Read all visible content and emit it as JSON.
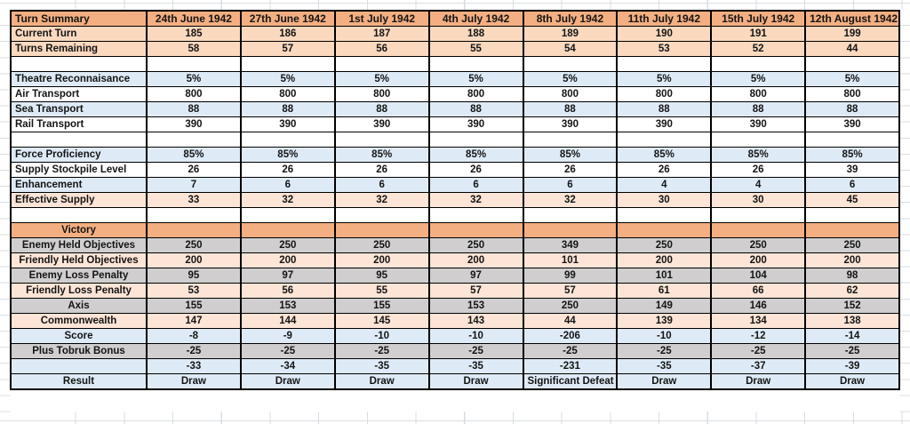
{
  "colors": {
    "orange": "#f3af81",
    "peach": "#fbd9bf",
    "peachLight": "#fce4d6",
    "blue": "#deebf7",
    "gray": "#d0cece",
    "white": "#ffffff",
    "border": "#000000",
    "gridline": "#d9dde1",
    "text": "#141414"
  },
  "grid": {
    "rows": [
      {
        "label": "Turn Summary",
        "labelAlign": "left",
        "bg": "orange",
        "header": true,
        "values": [
          "24th June 1942",
          "27th June 1942",
          "1st July 1942",
          "4th July 1942",
          "8th July 1942",
          "11th July 1942",
          "15th July 1942",
          "12th August 1942"
        ]
      },
      {
        "label": "Current Turn",
        "labelAlign": "left",
        "bg": "peach",
        "values": [
          "185",
          "186",
          "187",
          "188",
          "189",
          "190",
          "191",
          "199"
        ]
      },
      {
        "label": "Turns Remaining",
        "labelAlign": "left",
        "bg": "peach",
        "values": [
          "58",
          "57",
          "56",
          "55",
          "54",
          "53",
          "52",
          "44"
        ]
      },
      {
        "label": "",
        "labelAlign": "left",
        "bg": "white",
        "values": [
          "",
          "",
          "",
          "",
          "",
          "",
          "",
          ""
        ]
      },
      {
        "label": "Theatre Reconnaisance",
        "labelAlign": "left",
        "bg": "blue",
        "values": [
          "5%",
          "5%",
          "5%",
          "5%",
          "5%",
          "5%",
          "5%",
          "5%"
        ]
      },
      {
        "label": "Air Transport",
        "labelAlign": "left",
        "bg": "white",
        "values": [
          "800",
          "800",
          "800",
          "800",
          "800",
          "800",
          "800",
          "800"
        ]
      },
      {
        "label": "Sea Transport",
        "labelAlign": "left",
        "bg": "blue",
        "values": [
          "88",
          "88",
          "88",
          "88",
          "88",
          "88",
          "88",
          "88"
        ]
      },
      {
        "label": "Rail Transport",
        "labelAlign": "left",
        "bg": "white",
        "values": [
          "390",
          "390",
          "390",
          "390",
          "390",
          "390",
          "390",
          "390"
        ]
      },
      {
        "label": "",
        "labelAlign": "left",
        "bg": "white",
        "values": [
          "",
          "",
          "",
          "",
          "",
          "",
          "",
          ""
        ]
      },
      {
        "label": "Force Proficiency",
        "labelAlign": "left",
        "bg": "blue",
        "values": [
          "85%",
          "85%",
          "85%",
          "85%",
          "85%",
          "85%",
          "85%",
          "85%"
        ]
      },
      {
        "label": "Supply Stockpile Level",
        "labelAlign": "left",
        "bg": "white",
        "values": [
          "26",
          "26",
          "26",
          "26",
          "26",
          "26",
          "26",
          "39"
        ]
      },
      {
        "label": "Enhancement",
        "labelAlign": "left",
        "bg": "blue",
        "values": [
          "7",
          "6",
          "6",
          "6",
          "6",
          "4",
          "4",
          "6"
        ]
      },
      {
        "label": "Effective Supply",
        "labelAlign": "left",
        "bg": "peachLight",
        "values": [
          "33",
          "32",
          "32",
          "32",
          "32",
          "30",
          "30",
          "45"
        ]
      },
      {
        "label": "",
        "labelAlign": "left",
        "bg": "white",
        "values": [
          "",
          "",
          "",
          "",
          "",
          "",
          "",
          ""
        ]
      },
      {
        "label": "Victory",
        "labelAlign": "center",
        "bg": "orange",
        "values": [
          "",
          "",
          "",
          "",
          "",
          "",
          "",
          ""
        ]
      },
      {
        "label": "Enemy Held Objectives",
        "labelAlign": "center",
        "bg": "gray",
        "values": [
          "250",
          "250",
          "250",
          "250",
          "349",
          "250",
          "250",
          "250"
        ]
      },
      {
        "label": "Friendly Held Objectives",
        "labelAlign": "center",
        "bg": "peachLight",
        "values": [
          "200",
          "200",
          "200",
          "200",
          "101",
          "200",
          "200",
          "200"
        ]
      },
      {
        "label": "Enemy Loss Penalty",
        "labelAlign": "center",
        "bg": "gray",
        "values": [
          "95",
          "97",
          "95",
          "97",
          "99",
          "101",
          "104",
          "98"
        ]
      },
      {
        "label": "Friendly Loss Penalty",
        "labelAlign": "center",
        "bg": "peachLight",
        "values": [
          "53",
          "56",
          "55",
          "57",
          "57",
          "61",
          "66",
          "62"
        ]
      },
      {
        "label": "Axis",
        "labelAlign": "center",
        "bg": "gray",
        "values": [
          "155",
          "153",
          "155",
          "153",
          "250",
          "149",
          "146",
          "152"
        ]
      },
      {
        "label": "Commonwealth",
        "labelAlign": "center",
        "bg": "peachLight",
        "values": [
          "147",
          "144",
          "145",
          "143",
          "44",
          "139",
          "134",
          "138"
        ]
      },
      {
        "label": "Score",
        "labelAlign": "center",
        "bg": "blue",
        "values": [
          "-8",
          "-9",
          "-10",
          "-10",
          "-206",
          "-10",
          "-12",
          "-14"
        ]
      },
      {
        "label": "Plus Tobruk Bonus",
        "labelAlign": "center",
        "bg": "gray",
        "values": [
          "-25",
          "-25",
          "-25",
          "-25",
          "-25",
          "-25",
          "-25",
          "-25"
        ]
      },
      {
        "label": "",
        "labelAlign": "center",
        "bg": "blue",
        "values": [
          "-33",
          "-34",
          "-35",
          "-35",
          "-231",
          "-35",
          "-37",
          "-39"
        ]
      },
      {
        "label": "Result",
        "labelAlign": "center",
        "bg": "blue",
        "values": [
          "Draw",
          "Draw",
          "Draw",
          "Draw",
          "Significant Defeat",
          "Draw",
          "Draw",
          "Draw"
        ]
      }
    ]
  }
}
